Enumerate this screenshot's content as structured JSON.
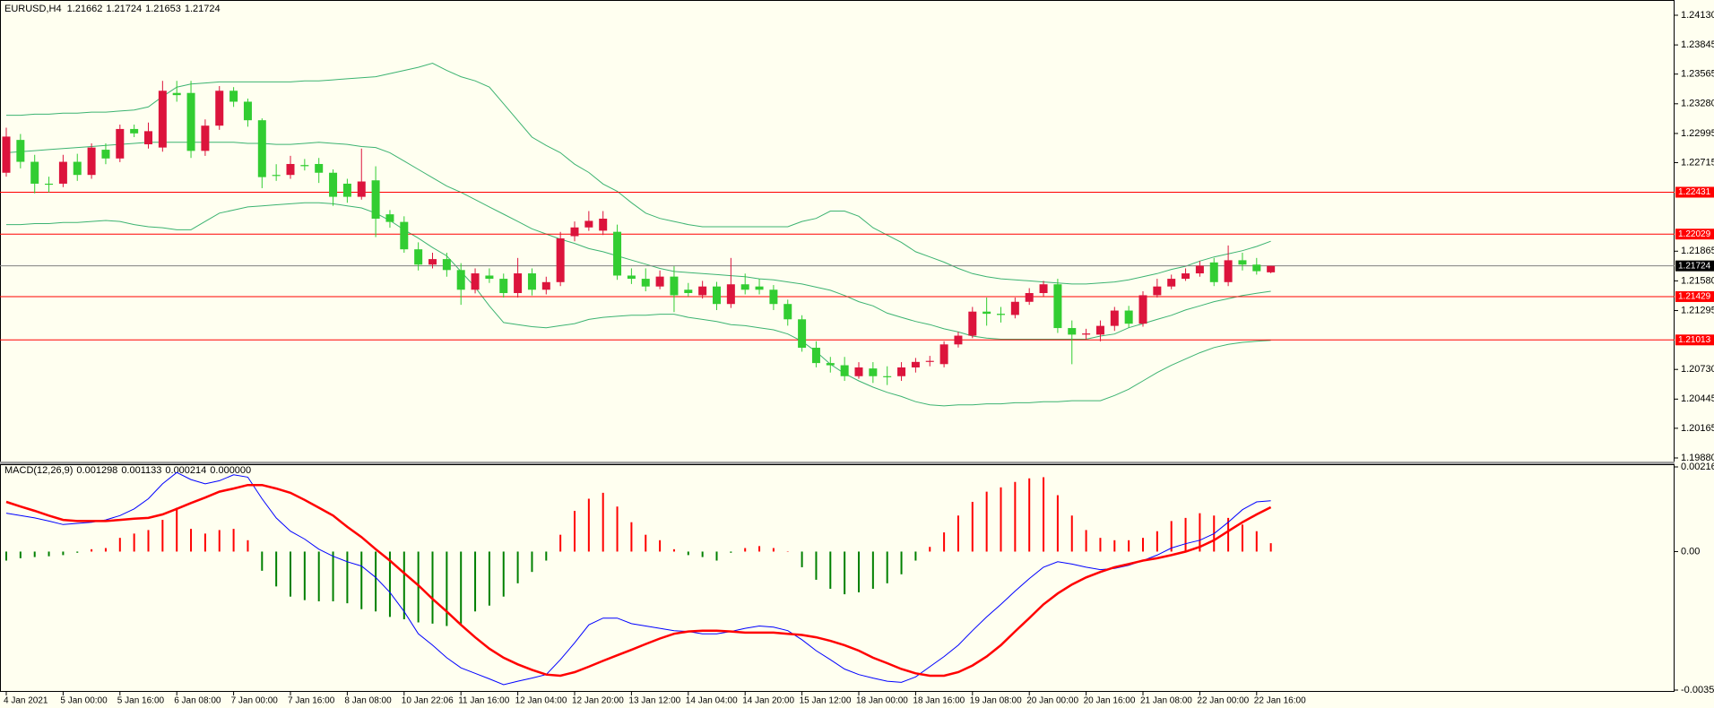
{
  "chart_data": [
    {
      "type": "candlestick",
      "title": "EURUSD,H4",
      "categories": [
        "4 Jan 2021",
        null,
        null,
        null,
        "5 Jan 00:00",
        null,
        null,
        null,
        "5 Jan 16:00",
        null,
        null,
        null,
        "6 Jan 08:00",
        null,
        null,
        null,
        "7 Jan 00:00",
        null,
        null,
        null,
        "7 Jan 16:00",
        null,
        null,
        null,
        "8 Jan 08:00",
        null,
        null,
        null,
        "10 Jan 22:06",
        null,
        null,
        null,
        "11 Jan 16:00",
        null,
        null,
        null,
        "12 Jan 04:00",
        null,
        null,
        null,
        "12 Jan 20:00",
        null,
        null,
        null,
        "13 Jan 12:00",
        null,
        null,
        null,
        "14 Jan 04:00",
        null,
        null,
        null,
        "14 Jan 20:00",
        null,
        null,
        null,
        "15 Jan 12:00",
        null,
        null,
        null,
        "18 Jan 00:00",
        null,
        null,
        null,
        "18 Jan 16:00",
        null,
        null,
        null,
        "19 Jan 08:00",
        null,
        null,
        null,
        "20 Jan 00:00",
        null,
        null,
        null,
        "20 Jan 16:00",
        null,
        null,
        null,
        "21 Jan 08:00",
        null,
        null,
        null,
        "22 Jan 00:00",
        null,
        null,
        null,
        "22 Jan 16:00",
        null
      ],
      "open": [
        1.22618,
        1.22933,
        1.22723,
        1.22513,
        1.22513,
        1.22723,
        1.22597,
        1.22839,
        1.22755,
        1.23038,
        1.22891,
        1.2286,
        1.23384,
        1.23384,
        1.22828,
        1.2307,
        1.23405,
        1.233,
        1.23122,
        1.22597,
        1.22597,
        1.22692,
        1.22702,
        1.22618,
        1.22513,
        1.22387,
        1.22545,
        1.22219,
        1.22146,
        1.21883,
        1.21736,
        1.21789,
        1.21684,
        1.21495,
        1.21631,
        1.216,
        1.21463,
        1.21652,
        1.21495,
        1.21568,
        1.22009,
        1.22093,
        1.22062,
        1.22051,
        1.21631,
        1.216,
        1.21526,
        1.21621,
        1.21495,
        1.21442,
        1.21526,
        1.21358,
        1.21547,
        1.21526,
        1.21495,
        1.21358,
        1.21211,
        1.20938,
        1.20791,
        1.2077,
        1.20665,
        1.20739,
        1.20665,
        1.20665,
        1.20749,
        1.20802,
        1.20781,
        1.2097,
        1.21054,
        1.21285,
        1.21264,
        1.21253,
        1.21379,
        1.21463,
        1.21547,
        1.21127,
        1.21064,
        1.21064,
        1.21148,
        1.21295,
        1.21169,
        1.21442,
        1.21526,
        1.216,
        1.21652,
        1.21757,
        1.21568,
        1.21778,
        1.21736,
        1.21662
      ],
      "high": [
        1.2305,
        1.2299,
        1.2279,
        1.2258,
        1.2279,
        1.228,
        1.229,
        1.229,
        1.2308,
        1.2308,
        1.231,
        1.235,
        1.235,
        1.235,
        1.2313,
        1.2345,
        1.2344,
        1.2333,
        1.2314,
        1.227,
        1.2278,
        1.2275,
        1.2276,
        1.2265,
        1.2256,
        1.2285,
        1.2268,
        1.2226,
        1.222,
        1.2195,
        1.2185,
        1.2185,
        1.2175,
        1.217,
        1.217,
        1.2165,
        1.218,
        1.217,
        1.2162,
        1.2205,
        1.2215,
        1.2225,
        1.2225,
        1.2212,
        1.217,
        1.217,
        1.2168,
        1.2172,
        1.2156,
        1.2158,
        1.2157,
        1.218,
        1.2165,
        1.216,
        1.2154,
        1.214,
        1.2125,
        1.21,
        1.2085,
        1.2085,
        1.208,
        1.208,
        1.2076,
        1.208,
        1.2084,
        1.2086,
        1.21,
        1.2109,
        1.2133,
        1.2142,
        1.2133,
        1.2142,
        1.2151,
        1.2158,
        1.216,
        1.212,
        1.2112,
        1.212,
        1.2133,
        1.2134,
        1.2148,
        1.216,
        1.2164,
        1.217,
        1.2177,
        1.218,
        1.2192,
        1.2185,
        1.218,
        1.21724
      ],
      "low": [
        1.2258,
        1.2266,
        1.2242,
        1.2243,
        1.2248,
        1.2254,
        1.2256,
        1.227,
        1.2272,
        1.2296,
        1.2285,
        1.2282,
        1.233,
        1.2276,
        1.2278,
        1.2303,
        1.2325,
        1.2306,
        1.2247,
        1.2254,
        1.2256,
        1.2264,
        1.2252,
        1.223,
        1.2233,
        1.2236,
        1.22,
        1.2209,
        1.2185,
        1.2168,
        1.217,
        1.2162,
        1.2135,
        1.2146,
        1.2156,
        1.2142,
        1.2142,
        1.2144,
        1.2145,
        1.2153,
        1.2196,
        1.2206,
        1.2202,
        1.2159,
        1.2155,
        1.2148,
        1.215,
        1.2128,
        1.2143,
        1.2141,
        1.213,
        1.2132,
        1.2145,
        1.2145,
        1.213,
        1.2115,
        1.209,
        1.2075,
        1.207,
        1.2062,
        1.2064,
        1.206,
        1.2058,
        1.2062,
        1.207,
        1.2076,
        1.2075,
        1.2094,
        1.2103,
        1.2115,
        1.2118,
        1.2122,
        1.2135,
        1.2143,
        1.2108,
        1.2078,
        1.2102,
        1.21,
        1.211,
        1.2113,
        1.2114,
        1.2142,
        1.215,
        1.2158,
        1.2162,
        1.2153,
        1.2153,
        1.2168,
        1.2164,
        1.21653
      ],
      "close": [
        1.22965,
        1.22723,
        1.22513,
        1.22503,
        1.22723,
        1.22597,
        1.2286,
        1.22755,
        1.23038,
        1.22996,
        1.23017,
        1.23405,
        1.23363,
        1.22828,
        1.2307,
        1.23405,
        1.233,
        1.23122,
        1.22576,
        1.22587,
        1.22702,
        1.22681,
        1.22618,
        1.22387,
        1.22387,
        1.22534,
        1.22177,
        1.22146,
        1.21883,
        1.21736,
        1.21789,
        1.21684,
        1.21495,
        1.21652,
        1.216,
        1.21463,
        1.21652,
        1.21495,
        1.21568,
        1.21988,
        1.22093,
        1.22156,
        1.22177,
        1.21631,
        1.216,
        1.21526,
        1.21621,
        1.21442,
        1.21463,
        1.21526,
        1.21358,
        1.21547,
        1.21495,
        1.21495,
        1.21358,
        1.21211,
        1.20938,
        1.20791,
        1.2077,
        1.20665,
        1.20749,
        1.20665,
        1.20655,
        1.20749,
        1.20802,
        1.20812,
        1.2097,
        1.21054,
        1.21285,
        1.21264,
        1.21253,
        1.21379,
        1.21463,
        1.21547,
        1.21127,
        1.21064,
        1.21075,
        1.21148,
        1.21295,
        1.21169,
        1.21442,
        1.21526,
        1.216,
        1.21652,
        1.21726,
        1.21568,
        1.21778,
        1.21736,
        1.21673,
        1.21724
      ],
      "up_color": "#dc143c",
      "down_color": "#32cd32",
      "bollinger": {
        "color": "#3cb371",
        "upper": [
          1.2317,
          1.2317,
          1.2318,
          1.2318,
          1.2319,
          1.2319,
          1.232,
          1.232,
          1.2321,
          1.2322,
          1.2325,
          1.2335,
          1.2344,
          1.2347,
          1.2348,
          1.2349,
          1.2349,
          1.2349,
          1.2349,
          1.2349,
          1.2349,
          1.235,
          1.235,
          1.2351,
          1.2352,
          1.2353,
          1.2354,
          1.2357,
          1.236,
          1.2363,
          1.2367,
          1.236,
          1.2354,
          1.235,
          1.2344,
          1.2328,
          1.2312,
          1.2296,
          1.2288,
          1.2281,
          1.227,
          1.2262,
          1.2251,
          1.2244,
          1.2233,
          1.2223,
          1.2218,
          1.2215,
          1.2212,
          1.221,
          1.221,
          1.221,
          1.221,
          1.221,
          1.221,
          1.221,
          1.2215,
          1.2218,
          1.2225,
          1.2225,
          1.222,
          1.2209,
          1.2202,
          1.2195,
          1.2186,
          1.2181,
          1.2176,
          1.217,
          1.2165,
          1.2162,
          1.216,
          1.2159,
          1.2158,
          1.2157,
          1.2156,
          1.2155,
          1.2155,
          1.2156,
          1.2157,
          1.2159,
          1.2162,
          1.2165,
          1.2169,
          1.2172,
          1.2177,
          1.2181,
          1.2184,
          1.2187,
          1.2191,
          1.2196
        ],
        "middle": [
          1.2281,
          1.2282,
          1.2283,
          1.2284,
          1.2285,
          1.2286,
          1.2287,
          1.2288,
          1.2289,
          1.229,
          1.2291,
          1.2291,
          1.2291,
          1.2291,
          1.2291,
          1.2291,
          1.2291,
          1.229,
          1.229,
          1.2289,
          1.2289,
          1.229,
          1.2291,
          1.229,
          1.2289,
          1.2287,
          1.2286,
          1.2281,
          1.2273,
          1.2265,
          1.2257,
          1.2249,
          1.2243,
          1.2236,
          1.2229,
          1.2222,
          1.2215,
          1.2208,
          1.2203,
          1.2198,
          1.2194,
          1.2189,
          1.2186,
          1.2182,
          1.2178,
          1.2174,
          1.217,
          1.2167,
          1.2166,
          1.2165,
          1.2164,
          1.2163,
          1.2162,
          1.216,
          1.2159,
          1.2157,
          1.2155,
          1.2152,
          1.2149,
          1.2144,
          1.2138,
          1.2134,
          1.2127,
          1.2123,
          1.2119,
          1.2116,
          1.2112,
          1.2109,
          1.2105,
          1.2103,
          1.2102,
          1.2102,
          1.2102,
          1.2102,
          1.2102,
          1.2102,
          1.2102,
          1.2105,
          1.2107,
          1.2113,
          1.2117,
          1.2121,
          1.2125,
          1.213,
          1.2134,
          1.2138,
          1.2141,
          1.2144,
          1.2146,
          1.2148
        ],
        "lower": [
          1.2212,
          1.2212,
          1.2213,
          1.2213,
          1.2214,
          1.2214,
          1.2215,
          1.2216,
          1.2215,
          1.2212,
          1.221,
          1.2209,
          1.2207,
          1.2207,
          1.2215,
          1.2223,
          1.2226,
          1.2229,
          1.223,
          1.2231,
          1.2232,
          1.2233,
          1.2233,
          1.2232,
          1.223,
          1.2228,
          1.2223,
          1.2216,
          1.2207,
          1.2199,
          1.219,
          1.2182,
          1.2167,
          1.2152,
          1.2134,
          1.2118,
          1.2116,
          1.2114,
          1.2113,
          1.2115,
          1.2117,
          1.2121,
          1.2123,
          1.2124,
          1.2125,
          1.2125,
          1.2126,
          1.2126,
          1.2123,
          1.2121,
          1.2119,
          1.2116,
          1.2115,
          1.2113,
          1.2111,
          1.2107,
          1.21,
          1.209,
          1.2078,
          1.2069,
          1.2062,
          1.2056,
          1.2051,
          1.2047,
          1.2042,
          1.2039,
          1.2038,
          1.2039,
          1.2039,
          1.204,
          1.204,
          1.2041,
          1.2041,
          1.2042,
          1.2042,
          1.2043,
          1.2043,
          1.2043,
          1.2048,
          1.2054,
          1.2062,
          1.207,
          1.2077,
          1.2083,
          1.2089,
          1.2094,
          1.2097,
          1.2099,
          1.21,
          1.2101
        ]
      },
      "levels": [
        1.22431,
        1.22029,
        1.21429,
        1.21013
      ],
      "level_color": "#ff0000",
      "price_line_color": "#808080",
      "ylim": [
        1.1988,
        1.2413
      ],
      "yticks": [
        {
          "value": 1.2413,
          "label": "1.24130"
        },
        1.23845,
        1.23565,
        {
          "value": 1.2328,
          "label": "1.23280"
        },
        1.22995,
        1.22715,
        1.21865,
        {
          "value": 1.2158,
          "label": "1.21580"
        },
        1.21295,
        {
          "value": 1.2073,
          "label": "1.20730"
        },
        1.20445,
        1.20165,
        {
          "value": 1.1988,
          "label": "1.19880"
        }
      ]
    },
    {
      "type": "macd",
      "title": "MACD(12,26,9)",
      "header_values": [
        0.001298,
        0.001133,
        0.000214,
        {
          "value": 0,
          "label": "0.000000"
        }
      ],
      "histogram": {
        "up_color": "#ff0000",
        "down_color": "#008000",
        "values": [
          -0.00023,
          -0.00017,
          -0.00014,
          -0.00012,
          -9e-05,
          -3e-05,
          6e-05,
          9e-05,
          0.00035,
          0.00046,
          0.00055,
          0.00081,
          0.00112,
          0.00058,
          0.00046,
          0.00055,
          0.00058,
          0.00029,
          -0.00049,
          -0.00089,
          -0.00115,
          -0.00124,
          -0.00127,
          -0.00127,
          -0.00132,
          -0.00147,
          -0.00153,
          -0.00167,
          -0.00173,
          -0.00181,
          -0.00184,
          -0.0019,
          -0.00184,
          -0.00153,
          -0.00138,
          -0.00115,
          -0.00081,
          -0.00052,
          -0.00023,
          0.00043,
          0.00104,
          0.00135,
          0.0015,
          0.00115,
          0.00075,
          0.00043,
          0.00029,
          6e-05,
          -9e-05,
          -0.00014,
          -0.00023,
          -3e-05,
          9e-05,
          0.00014,
          9e-05,
          1e-05,
          -0.0004,
          -0.00072,
          -0.00095,
          -0.00109,
          -0.00104,
          -0.00095,
          -0.00081,
          -0.00058,
          -0.00023,
          0.00012,
          0.00049,
          0.00092,
          0.00127,
          0.00153,
          0.00164,
          0.00178,
          0.00187,
          0.0019,
          0.00144,
          0.00092,
          0.00055,
          0.00035,
          0.00029,
          0.00029,
          0.00035,
          0.00052,
          0.00078,
          0.00086,
          0.00098,
          0.00092,
          0.00086,
          0.00069,
          0.00052,
          0.000214
        ]
      },
      "series": [
        {
          "color": "#0000ff",
          "values": [
            0.00098,
            0.00092,
            0.00086,
            0.00078,
            0.00069,
            0.00072,
            0.00075,
            0.00081,
            0.00092,
            0.00109,
            0.00135,
            0.00173,
            0.00202,
            0.00184,
            0.00173,
            0.00181,
            0.00196,
            0.0019,
            0.00135,
            0.00086,
            0.00052,
            0.00032,
            6e-05,
            -0.00012,
            -0.00026,
            -0.00037,
            -0.00066,
            -0.00104,
            -0.00153,
            -0.0021,
            -0.00239,
            -0.00271,
            -0.00297,
            -0.00311,
            -0.00325,
            -0.0034,
            -0.00331,
            -0.00323,
            -0.00314,
            -0.00276,
            -0.00233,
            -0.00187,
            -0.0017,
            -0.0017,
            -0.00184,
            -0.0019,
            -0.00196,
            -0.00202,
            -0.00204,
            -0.0021,
            -0.0021,
            -0.00204,
            -0.00196,
            -0.0019,
            -0.00193,
            -0.00202,
            -0.00225,
            -0.00253,
            -0.00276,
            -0.003,
            -0.00314,
            -0.00323,
            -0.00331,
            -0.00334,
            -0.0032,
            -0.00294,
            -0.00268,
            -0.00239,
            -0.00202,
            -0.00167,
            -0.00135,
            -0.00101,
            -0.00069,
            -0.0004,
            -0.00026,
            -0.00032,
            -0.0004,
            -0.00046,
            -0.00043,
            -0.00035,
            -0.00023,
            -9e-05,
            9e-05,
            0.0002,
            0.00029,
            0.00046,
            0.00075,
            0.00107,
            0.00127,
            0.001298
          ],
          "width": 1
        },
        {
          "color": "#ff0000",
          "values": [
            0.00127,
            0.00115,
            0.00104,
            0.00092,
            0.00081,
            0.00078,
            0.00078,
            0.00078,
            0.00081,
            0.00084,
            0.00086,
            0.00095,
            0.00109,
            0.00124,
            0.00138,
            0.00153,
            0.00161,
            0.0017,
            0.0017,
            0.00161,
            0.0015,
            0.00132,
            0.00112,
            0.00092,
            0.00063,
            0.00037,
            6e-05,
            -0.00023,
            -0.00055,
            -0.00086,
            -0.00121,
            -0.00153,
            -0.00187,
            -0.00219,
            -0.00248,
            -0.00271,
            -0.00288,
            -0.00302,
            -0.00314,
            -0.00317,
            -0.00308,
            -0.00294,
            -0.00279,
            -0.00265,
            -0.00251,
            -0.00236,
            -0.00222,
            -0.0021,
            -0.00204,
            -0.00202,
            -0.00202,
            -0.00204,
            -0.00207,
            -0.00207,
            -0.00207,
            -0.0021,
            -0.00213,
            -0.00219,
            -0.00228,
            -0.00239,
            -0.00253,
            -0.00271,
            -0.00285,
            -0.003,
            -0.00311,
            -0.00317,
            -0.00317,
            -0.00308,
            -0.00291,
            -0.00268,
            -0.00239,
            -0.00204,
            -0.0017,
            -0.00135,
            -0.00107,
            -0.00084,
            -0.00066,
            -0.00052,
            -0.0004,
            -0.00032,
            -0.00023,
            -0.00017,
            -9e-05,
            0,
            0.00012,
            0.00029,
            0.00052,
            0.00075,
            0.00095,
            0.001133
          ],
          "width": 2.5
        }
      ],
      "ylim": [
        -0.003537,
        0.002162
      ],
      "yticks": [
        0.002162,
        {
          "value": 0,
          "label": "0.00"
        },
        -0.003537
      ]
    }
  ]
}
